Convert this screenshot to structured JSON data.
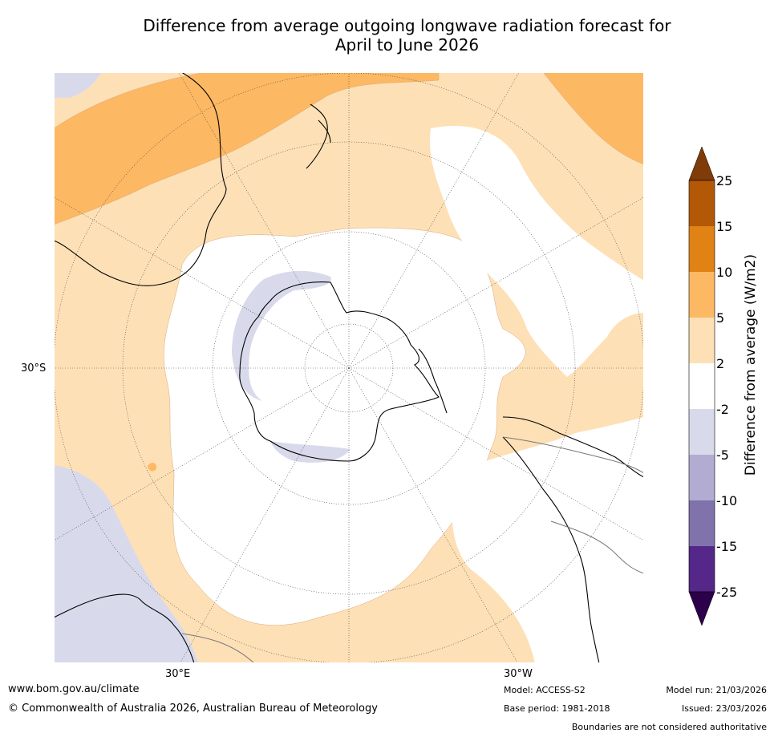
{
  "title_line1": "Difference from average outgoing longwave radiation forecast for",
  "title_line2": "April to June 2026",
  "map": {
    "lat_label": "30°S",
    "lon_label_left": "30°E",
    "lon_label_right": "30°W"
  },
  "colorbar": {
    "label": "Difference from average (W/m2)",
    "ticks": [
      "25",
      "15",
      "10",
      "5",
      "2",
      "-2",
      "-5",
      "-10",
      "-15",
      "-25"
    ],
    "colors": {
      "over": "#7f3b08",
      "b15_25": "#b35806",
      "b10_15": "#e08214",
      "b5_10": "#fdb863",
      "b2_5": "#fee0b6",
      "neutral": "#ffffff",
      "bm5_m2": "#d8daeb",
      "bm10_m5": "#b2abd2",
      "bm15_m10": "#8073ac",
      "bm25_m15": "#542788",
      "under": "#2d004b"
    }
  },
  "footer": {
    "website": "www.bom.gov.au/climate",
    "copyright": "© Commonwealth of Australia 2026, Australian Bureau of Meteorology",
    "model": "Model: ACCESS-S2",
    "base_period": "Base period: 1981-2018",
    "model_run": "Model run: 21/03/2026",
    "issued": "Issued: 23/03/2026",
    "disclaimer": "Boundaries are not considered authoritative"
  }
}
